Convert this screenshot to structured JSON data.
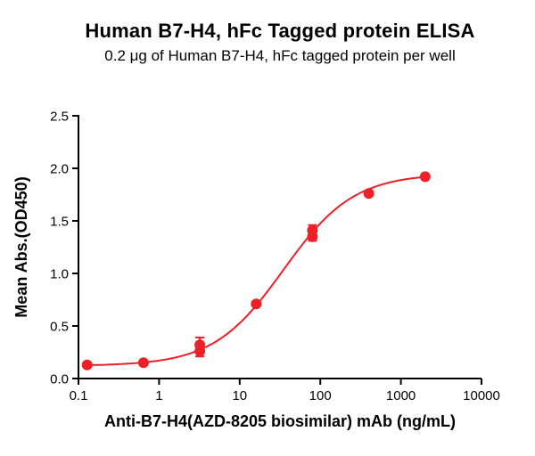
{
  "chart_data": {
    "type": "line",
    "title": "Human B7-H4, hFc Tagged protein ELISA",
    "subtitle": "0.2 μg of Human B7-H4, hFc tagged protein per well",
    "xlabel": "Anti-B7-H4(AZD-8205 biosimilar) mAb (ng/mL)",
    "ylabel": "Mean Abs.(OD450)",
    "x_scale": "log10",
    "xlim": [
      0.1,
      10000
    ],
    "ylim": [
      0.0,
      2.5
    ],
    "xtick_values": [
      0.1,
      1,
      10,
      100,
      1000,
      10000
    ],
    "xtick_labels": [
      "0.1",
      "1",
      "10",
      "100",
      "1000",
      "10000"
    ],
    "ytick_values": [
      0.0,
      0.5,
      1.0,
      1.5,
      2.0,
      2.5
    ],
    "ytick_labels": [
      "0.0",
      "0.5",
      "1.0",
      "1.5",
      "2.0",
      "2.5"
    ],
    "series_color": "#EC2027",
    "grid": false,
    "legend": "none",
    "points": [
      {
        "x": 0.128,
        "y": 0.13,
        "err": 0
      },
      {
        "x": 0.64,
        "y": 0.15,
        "err": 0
      },
      {
        "x": 3.2,
        "y": 0.32,
        "err": 0.07
      },
      {
        "x": 3.2,
        "y": 0.26,
        "err": 0.05
      },
      {
        "x": 16,
        "y": 0.71,
        "err": 0
      },
      {
        "x": 80,
        "y": 1.41,
        "err": 0.05
      },
      {
        "x": 80,
        "y": 1.35,
        "err": 0.04
      },
      {
        "x": 400,
        "y": 1.76,
        "err": 0
      },
      {
        "x": 2000,
        "y": 1.92,
        "err": 0
      }
    ],
    "fit_curve": {
      "model": "4PL",
      "bottom": 0.12,
      "top": 1.95,
      "ec50": 35,
      "hill": 1.0,
      "x_start": 0.128,
      "x_end": 2000
    }
  }
}
